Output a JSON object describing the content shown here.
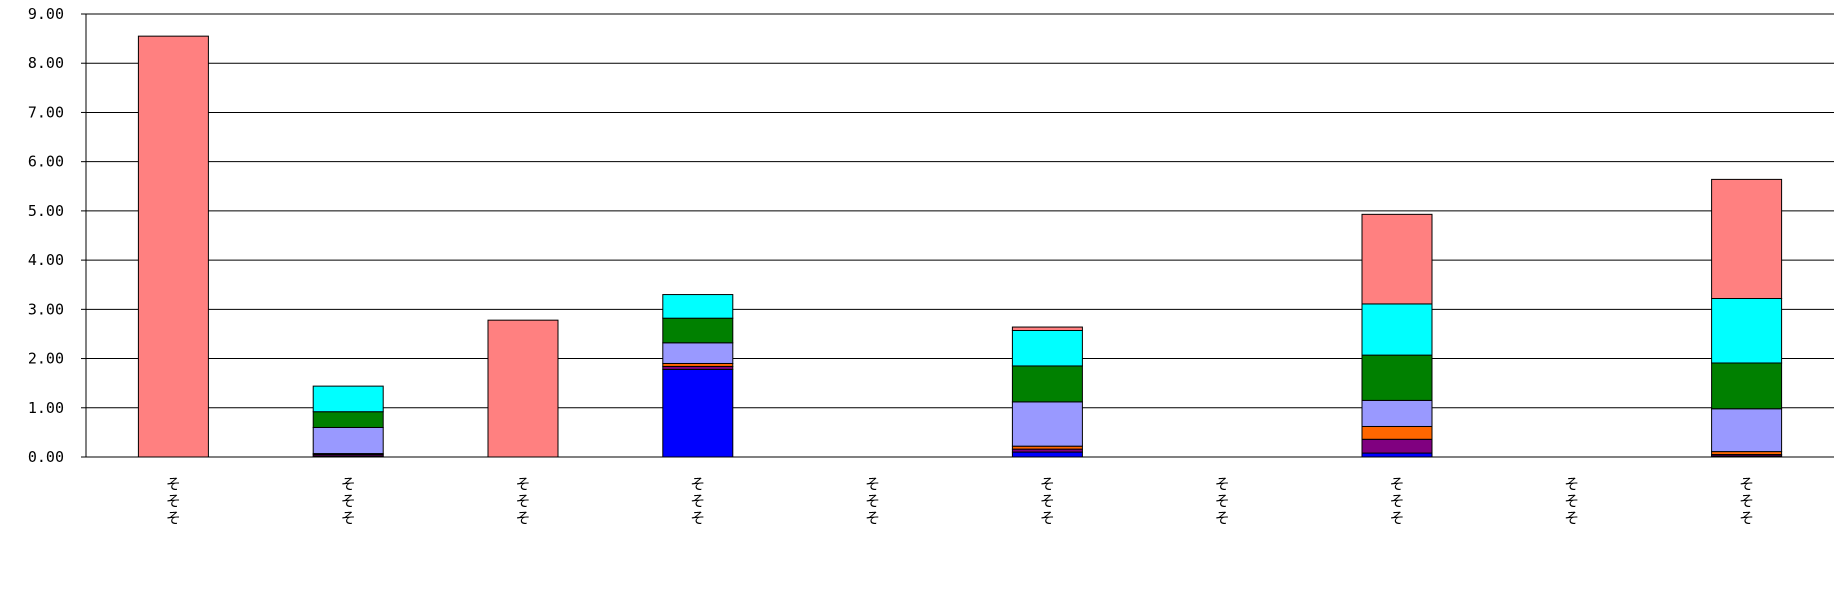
{
  "chart_data": {
    "type": "bar",
    "stacked": true,
    "title": "",
    "xlabel": "",
    "ylabel": "",
    "ylim": [
      0,
      9
    ],
    "y_ticks": [
      0,
      1,
      2,
      3,
      4,
      5,
      6,
      7,
      8,
      9
    ],
    "y_tick_labels": [
      "0.00",
      "1.00",
      "2.00",
      "3.00",
      "4.00",
      "5.00",
      "6.00",
      "7.00",
      "8.00",
      "9.00"
    ],
    "grid": true,
    "legend": "none",
    "categories": [
      "そそそ",
      "そそそ",
      "そそそ",
      "そそそ",
      "そそそ",
      "そそそ",
      "そそそ",
      "そそそ",
      "そそそ",
      "そそそ"
    ],
    "series": [
      {
        "color": "#0000FF",
        "values": [
          0,
          0.02,
          0,
          1.78,
          0,
          0.1,
          0,
          0.08,
          0,
          0.02
        ]
      },
      {
        "color": "#800080",
        "values": [
          0,
          0.03,
          0,
          0.06,
          0,
          0.06,
          0,
          0.28,
          0,
          0.03
        ]
      },
      {
        "color": "#FF6600",
        "values": [
          0,
          0.02,
          0,
          0.06,
          0,
          0.06,
          0,
          0.26,
          0,
          0.06
        ]
      },
      {
        "color": "#9999FF",
        "values": [
          0,
          0.53,
          0,
          0.42,
          0,
          0.9,
          0,
          0.53,
          0,
          0.87
        ]
      },
      {
        "color": "#008000",
        "values": [
          0,
          0.32,
          0,
          0.5,
          0,
          0.73,
          0,
          0.92,
          0,
          0.93
        ]
      },
      {
        "color": "#00FFFF",
        "values": [
          0,
          0.52,
          0,
          0.48,
          0,
          0.72,
          0,
          1.04,
          0,
          1.31
        ]
      },
      {
        "color": "#FF8080",
        "values": [
          8.55,
          0,
          2.78,
          0,
          0,
          0.07,
          0,
          1.82,
          0,
          2.42
        ]
      }
    ]
  }
}
